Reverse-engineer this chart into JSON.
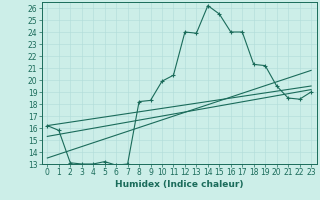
{
  "xlabel": "Humidex (Indice chaleur)",
  "ylabel": "",
  "bg_color": "#cceee8",
  "line_color": "#1a6b5a",
  "xlim": [
    -0.5,
    23.5
  ],
  "ylim": [
    13,
    26.5
  ],
  "yticks": [
    13,
    14,
    15,
    16,
    17,
    18,
    19,
    20,
    21,
    22,
    23,
    24,
    25,
    26
  ],
  "xticks": [
    0,
    1,
    2,
    3,
    4,
    5,
    6,
    7,
    8,
    9,
    10,
    11,
    12,
    13,
    14,
    15,
    16,
    17,
    18,
    19,
    20,
    21,
    22,
    23
  ],
  "series1_x": [
    0,
    1,
    2,
    3,
    4,
    5,
    6,
    7,
    8,
    9,
    10,
    11,
    12,
    13,
    14,
    15,
    16,
    17,
    18,
    19,
    20,
    21,
    22,
    23
  ],
  "series1_y": [
    16.2,
    15.8,
    13.1,
    13.0,
    13.0,
    13.2,
    12.9,
    13.0,
    18.2,
    18.3,
    19.9,
    20.4,
    24.0,
    23.9,
    26.2,
    25.5,
    24.0,
    24.0,
    21.3,
    21.2,
    19.5,
    18.5,
    18.4,
    19.0
  ],
  "series2_x": [
    0,
    23
  ],
  "series2_y": [
    16.2,
    19.5
  ],
  "series3_x": [
    0,
    23
  ],
  "series3_y": [
    15.3,
    19.2
  ],
  "series4_x": [
    0,
    23
  ],
  "series4_y": [
    13.5,
    20.8
  ]
}
